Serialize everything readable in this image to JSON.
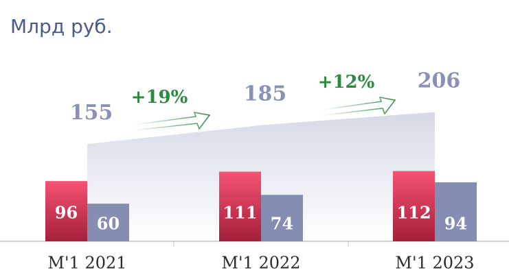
{
  "chart_data": {
    "type": "bar",
    "title": "Млрд руб.",
    "categories": [
      "М'1 2021",
      "М'1 2022",
      "М'1 2023"
    ],
    "series": [
      {
        "color": "#e23a5c",
        "values": [
          96,
          111,
          112
        ]
      },
      {
        "color": "#858db2",
        "values": [
          60,
          74,
          94
        ]
      }
    ],
    "totals": [
      155,
      185,
      206
    ],
    "totals_color": "#8a91b6",
    "growth": [
      19,
      12
    ],
    "growth_labels": [
      "+19%",
      "+12%"
    ],
    "growth_color": "#2b8a3e"
  }
}
